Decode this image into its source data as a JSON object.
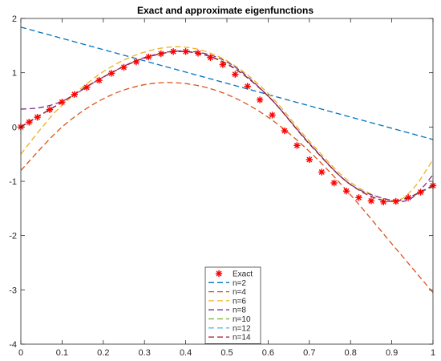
{
  "chart_data": {
    "type": "line",
    "title": "Exact and approximate eigenfunctions",
    "xlabel": "",
    "ylabel": "",
    "xlim": [
      0,
      1
    ],
    "ylim": [
      -4,
      2
    ],
    "x_ticks": [
      "0",
      "0.1",
      "0.2",
      "0.3",
      "0.4",
      "0.5",
      "0.6",
      "0.7",
      "0.8",
      "0.9",
      "1"
    ],
    "y_ticks": [
      "-4",
      "-3",
      "-2",
      "-1",
      "0",
      "1",
      "2"
    ],
    "grid": false,
    "legend_position": "bottom-center",
    "exact": {
      "name": "Exact",
      "color": "#ff0000",
      "marker": "asterisk",
      "x": [
        0,
        0.02,
        0.04,
        0.07,
        0.1,
        0.13,
        0.16,
        0.19,
        0.22,
        0.25,
        0.28,
        0.31,
        0.34,
        0.37,
        0.4,
        0.43,
        0.46,
        0.49,
        0.52,
        0.55,
        0.58,
        0.61,
        0.64,
        0.67,
        0.7,
        0.73,
        0.76,
        0.79,
        0.82,
        0.85,
        0.88,
        0.91,
        0.94,
        0.97,
        1
      ],
      "y": [
        0,
        0.09,
        0.18,
        0.32,
        0.46,
        0.6,
        0.73,
        0.86,
        0.99,
        1.1,
        1.2,
        1.29,
        1.35,
        1.39,
        1.39,
        1.36,
        1.28,
        1.15,
        0.97,
        0.75,
        0.5,
        0.22,
        -0.07,
        -0.34,
        -0.6,
        -0.83,
        -1.03,
        -1.18,
        -1.3,
        -1.36,
        -1.38,
        -1.37,
        -1.3,
        -1.2,
        -1.08
      ]
    },
    "series": [
      {
        "name": "n=2",
        "color": "#0072bd",
        "x": [
          0,
          1
        ],
        "y": [
          1.84,
          -0.23
        ]
      },
      {
        "name": "n=4",
        "color": "#d95319",
        "x": [
          0,
          0.1,
          0.2,
          0.3,
          0.4,
          0.5,
          0.6,
          0.7,
          0.8,
          0.9,
          1
        ],
        "y": [
          -0.8,
          0.0,
          0.52,
          0.78,
          0.8,
          0.6,
          0.18,
          -0.45,
          -1.25,
          -2.15,
          -3.05
        ]
      },
      {
        "name": "n=6",
        "color": "#edb120",
        "x": [
          0,
          0.05,
          0.1,
          0.2,
          0.3,
          0.4,
          0.5,
          0.6,
          0.7,
          0.8,
          0.9,
          0.95,
          1
        ],
        "y": [
          -0.5,
          -0.02,
          0.4,
          1.02,
          1.38,
          1.47,
          1.22,
          0.62,
          -0.26,
          -1.02,
          -1.35,
          -1.15,
          -0.6
        ]
      },
      {
        "name": "n=8",
        "color": "#7e2f8e",
        "x": [
          0,
          0.04,
          0.08,
          0.12,
          0.2,
          0.3,
          0.4,
          0.5,
          0.6,
          0.7,
          0.8,
          0.9,
          0.95,
          1
        ],
        "y": [
          0.33,
          0.35,
          0.42,
          0.55,
          0.92,
          1.28,
          1.4,
          1.2,
          0.57,
          -0.3,
          -1.06,
          -1.35,
          -1.3,
          -0.88
        ]
      },
      {
        "name": "n=10",
        "color": "#77ac30",
        "x": [
          0,
          0.1,
          0.2,
          0.3,
          0.4,
          0.5,
          0.6,
          0.7,
          0.8,
          0.9,
          1
        ],
        "y": [
          0.01,
          0.46,
          0.92,
          1.27,
          1.39,
          1.17,
          0.57,
          -0.31,
          -1.06,
          -1.37,
          -1.1
        ]
      },
      {
        "name": "n=12",
        "color": "#4dbeee",
        "x": [
          0,
          0.1,
          0.2,
          0.3,
          0.4,
          0.5,
          0.6,
          0.7,
          0.8,
          0.9,
          1
        ],
        "y": [
          0.0,
          0.46,
          0.92,
          1.27,
          1.39,
          1.16,
          0.57,
          -0.31,
          -1.06,
          -1.37,
          -1.09
        ]
      },
      {
        "name": "n=14",
        "color": "#a2142f",
        "x": [
          0,
          0.1,
          0.2,
          0.3,
          0.4,
          0.5,
          0.6,
          0.7,
          0.8,
          0.9,
          1
        ],
        "y": [
          0.0,
          0.46,
          0.92,
          1.27,
          1.39,
          1.16,
          0.57,
          -0.31,
          -1.06,
          -1.37,
          -1.08
        ]
      }
    ]
  }
}
